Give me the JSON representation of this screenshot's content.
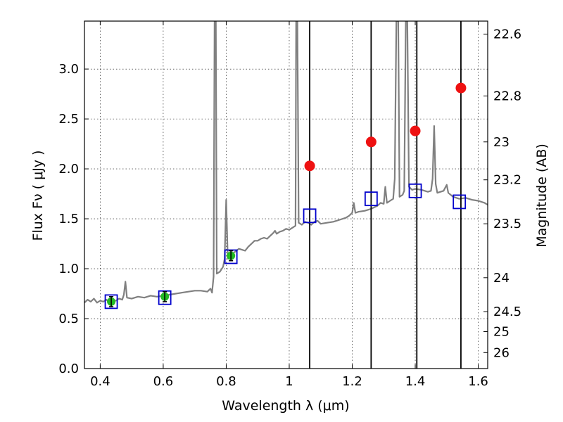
{
  "chart_data": {
    "type": "line",
    "xlabel": "Wavelength  λ (μm)",
    "ylabel": "Flux  Fν  ( μJy )",
    "y2label": "Magnitude (AB)",
    "xlim": [
      0.35,
      1.63
    ],
    "ylim": [
      0.0,
      3.48
    ],
    "grid": true,
    "x_ticks": [
      {
        "v": 0.4,
        "label": "0.4"
      },
      {
        "v": 0.6,
        "label": "0.6"
      },
      {
        "v": 0.8,
        "label": "0.8"
      },
      {
        "v": 1.0,
        "label": "1"
      },
      {
        "v": 1.2,
        "label": "1.2"
      },
      {
        "v": 1.4,
        "label": "1.4"
      },
      {
        "v": 1.6,
        "label": "1.6"
      }
    ],
    "y_ticks": [
      {
        "v": 0.0,
        "label": "0.0"
      },
      {
        "v": 0.5,
        "label": "0.5"
      },
      {
        "v": 1.0,
        "label": "1.0"
      },
      {
        "v": 1.5,
        "label": "1.5"
      },
      {
        "v": 2.0,
        "label": "2.0"
      },
      {
        "v": 2.5,
        "label": "2.5"
      },
      {
        "v": 3.0,
        "label": "3.0"
      }
    ],
    "y2_ticks": [
      {
        "flux": 3.35,
        "label": "22.6"
      },
      {
        "flux": 2.73,
        "label": "22.8"
      },
      {
        "flux": 2.27,
        "label": "23"
      },
      {
        "flux": 1.89,
        "label": "23.2"
      },
      {
        "flux": 1.45,
        "label": "23.5"
      },
      {
        "flux": 0.91,
        "label": "24"
      },
      {
        "flux": 0.57,
        "label": "24.5"
      },
      {
        "flux": 0.37,
        "label": "25"
      },
      {
        "flux": 0.16,
        "label": "26"
      }
    ],
    "colors": {
      "spectrum": "#808080",
      "model": "#0000cc",
      "measured": "#22bb22",
      "predicted": "#ee1111",
      "marker_line": "#000000"
    },
    "spectrum": {
      "name": "",
      "points": [
        [
          0.35,
          0.66
        ],
        [
          0.36,
          0.69
        ],
        [
          0.37,
          0.67
        ],
        [
          0.38,
          0.7
        ],
        [
          0.39,
          0.66
        ],
        [
          0.4,
          0.68
        ],
        [
          0.41,
          0.67
        ],
        [
          0.42,
          0.69
        ],
        [
          0.43,
          0.66
        ],
        [
          0.44,
          0.68
        ],
        [
          0.45,
          0.68
        ],
        [
          0.46,
          0.7
        ],
        [
          0.47,
          0.69
        ],
        [
          0.475,
          0.74
        ],
        [
          0.48,
          0.87
        ],
        [
          0.485,
          0.71
        ],
        [
          0.5,
          0.7
        ],
        [
          0.52,
          0.72
        ],
        [
          0.54,
          0.71
        ],
        [
          0.56,
          0.73
        ],
        [
          0.58,
          0.72
        ],
        [
          0.6,
          0.73
        ],
        [
          0.62,
          0.74
        ],
        [
          0.64,
          0.75
        ],
        [
          0.66,
          0.76
        ],
        [
          0.68,
          0.77
        ],
        [
          0.7,
          0.78
        ],
        [
          0.72,
          0.78
        ],
        [
          0.74,
          0.77
        ],
        [
          0.75,
          0.8
        ],
        [
          0.755,
          0.76
        ],
        [
          0.76,
          0.92
        ],
        [
          0.763,
          3.48
        ],
        [
          0.767,
          3.48
        ],
        [
          0.77,
          0.95
        ],
        [
          0.78,
          0.97
        ],
        [
          0.79,
          1.02
        ],
        [
          0.795,
          1.1
        ],
        [
          0.8,
          1.69
        ],
        [
          0.805,
          1.1
        ],
        [
          0.82,
          1.15
        ],
        [
          0.84,
          1.2
        ],
        [
          0.85,
          1.19
        ],
        [
          0.86,
          1.18
        ],
        [
          0.87,
          1.22
        ],
        [
          0.88,
          1.25
        ],
        [
          0.89,
          1.28
        ],
        [
          0.9,
          1.28
        ],
        [
          0.91,
          1.3
        ],
        [
          0.92,
          1.31
        ],
        [
          0.93,
          1.3
        ],
        [
          0.94,
          1.33
        ],
        [
          0.95,
          1.36
        ],
        [
          0.955,
          1.38
        ],
        [
          0.96,
          1.35
        ],
        [
          0.97,
          1.37
        ],
        [
          0.98,
          1.38
        ],
        [
          0.99,
          1.4
        ],
        [
          1.0,
          1.39
        ],
        [
          1.01,
          1.41
        ],
        [
          1.02,
          1.43
        ],
        [
          1.022,
          3.48
        ],
        [
          1.026,
          3.48
        ],
        [
          1.03,
          1.46
        ],
        [
          1.04,
          1.44
        ],
        [
          1.05,
          1.47
        ],
        [
          1.06,
          1.46
        ],
        [
          1.07,
          1.44
        ],
        [
          1.08,
          1.47
        ],
        [
          1.09,
          1.48
        ],
        [
          1.1,
          1.45
        ],
        [
          1.12,
          1.46
        ],
        [
          1.14,
          1.47
        ],
        [
          1.16,
          1.49
        ],
        [
          1.18,
          1.51
        ],
        [
          1.19,
          1.53
        ],
        [
          1.2,
          1.56
        ],
        [
          1.205,
          1.66
        ],
        [
          1.21,
          1.56
        ],
        [
          1.22,
          1.57
        ],
        [
          1.24,
          1.58
        ],
        [
          1.26,
          1.6
        ],
        [
          1.28,
          1.63
        ],
        [
          1.29,
          1.66
        ],
        [
          1.3,
          1.65
        ],
        [
          1.305,
          1.82
        ],
        [
          1.31,
          1.66
        ],
        [
          1.32,
          1.68
        ],
        [
          1.33,
          1.7
        ],
        [
          1.335,
          1.9
        ],
        [
          1.34,
          3.48
        ],
        [
          1.346,
          3.48
        ],
        [
          1.35,
          1.72
        ],
        [
          1.36,
          1.74
        ],
        [
          1.365,
          1.78
        ],
        [
          1.37,
          3.48
        ],
        [
          1.375,
          3.48
        ],
        [
          1.38,
          1.82
        ],
        [
          1.39,
          1.79
        ],
        [
          1.4,
          1.8
        ],
        [
          1.42,
          1.79
        ],
        [
          1.44,
          1.77
        ],
        [
          1.45,
          1.78
        ],
        [
          1.455,
          1.9
        ],
        [
          1.46,
          2.43
        ],
        [
          1.465,
          1.85
        ],
        [
          1.47,
          1.76
        ],
        [
          1.48,
          1.77
        ],
        [
          1.49,
          1.78
        ],
        [
          1.5,
          1.84
        ],
        [
          1.505,
          1.76
        ],
        [
          1.52,
          1.72
        ],
        [
          1.54,
          1.7
        ],
        [
          1.56,
          1.71
        ],
        [
          1.58,
          1.69
        ],
        [
          1.6,
          1.68
        ],
        [
          1.62,
          1.66
        ],
        [
          1.63,
          1.64
        ]
      ]
    },
    "model_points": [
      {
        "x": 0.435,
        "y": 0.67
      },
      {
        "x": 0.605,
        "y": 0.71
      },
      {
        "x": 0.815,
        "y": 1.12
      },
      {
        "x": 1.065,
        "y": 1.53
      },
      {
        "x": 1.26,
        "y": 1.7
      },
      {
        "x": 1.4,
        "y": 1.78
      },
      {
        "x": 1.54,
        "y": 1.67
      }
    ],
    "measured_points": [
      {
        "x": 0.435,
        "y": 0.67,
        "err": 0.05
      },
      {
        "x": 0.605,
        "y": 0.72,
        "err": 0.05
      },
      {
        "x": 0.815,
        "y": 1.13,
        "err": 0.05
      }
    ],
    "predicted_points": [
      {
        "x": 1.065,
        "y": 2.03
      },
      {
        "x": 1.26,
        "y": 2.27
      },
      {
        "x": 1.4,
        "y": 2.38
      },
      {
        "x": 1.545,
        "y": 2.81
      }
    ],
    "vertical_lines": [
      1.065,
      1.26,
      1.405,
      1.545
    ]
  }
}
